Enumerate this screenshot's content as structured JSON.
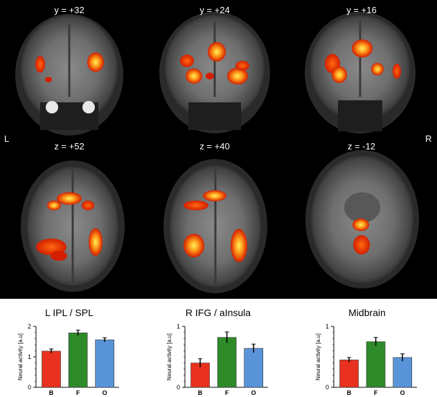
{
  "brain": {
    "coronal_labels": [
      "y = +32",
      "y = +24",
      "y = +16"
    ],
    "axial_labels": [
      "z = +52",
      "z = +40",
      "z = -12"
    ],
    "left_marker": "L",
    "right_marker": "R",
    "colors": {
      "background": "#000000",
      "activation_low": "#d41e00",
      "activation_high": "#fff25a"
    }
  },
  "chart_data": [
    {
      "type": "bar",
      "title": "L IPL / SPL",
      "ylabel": "Neural activity [a.u]",
      "categories": [
        "B",
        "F",
        "O"
      ],
      "values": [
        1.19,
        1.79,
        1.56
      ],
      "errors": [
        0.07,
        0.09,
        0.07
      ],
      "ylim": [
        0,
        2
      ],
      "yticks": [
        "0",
        "1",
        "2"
      ],
      "colors": [
        "#e8321f",
        "#2f8a2a",
        "#5a94d8"
      ]
    },
    {
      "type": "bar",
      "title": "R IFG / aInsula",
      "ylabel": "Neural activity [a.u]",
      "categories": [
        "B",
        "F",
        "O"
      ],
      "values": [
        0.4,
        0.82,
        0.64
      ],
      "errors": [
        0.07,
        0.09,
        0.07
      ],
      "ylim": [
        0,
        1
      ],
      "yticks": [
        "0",
        "1"
      ],
      "colors": [
        "#e8321f",
        "#2f8a2a",
        "#5a94d8"
      ]
    },
    {
      "type": "bar",
      "title": "Midbrain",
      "ylabel": "Neural activity [a.u]",
      "categories": [
        "B",
        "F",
        "O"
      ],
      "values": [
        0.45,
        0.75,
        0.49
      ],
      "errors": [
        0.04,
        0.07,
        0.06
      ],
      "ylim": [
        0,
        1
      ],
      "yticks": [
        "0",
        "1"
      ],
      "colors": [
        "#e8321f",
        "#2f8a2a",
        "#5a94d8"
      ]
    }
  ]
}
